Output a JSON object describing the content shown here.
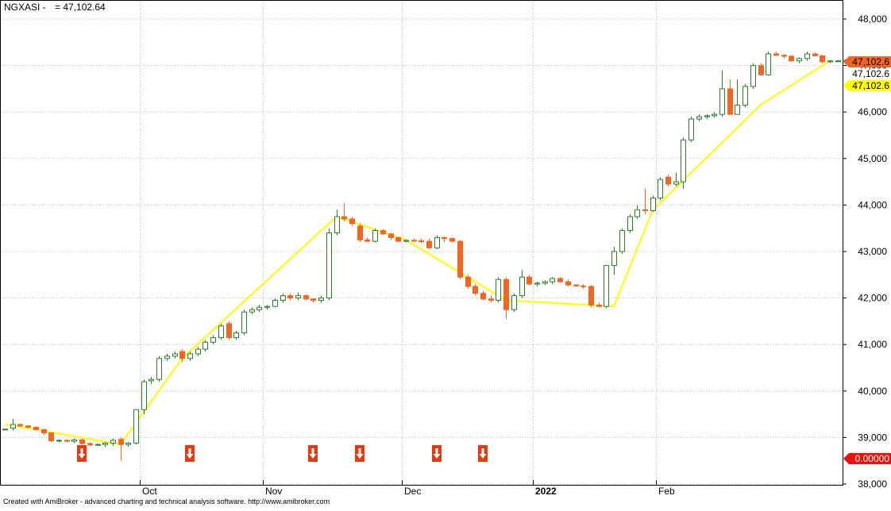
{
  "chart_data": {
    "type": "candlestick",
    "symbol": "NGXASI -",
    "last_value": "= 47,102.64",
    "y_ticks": [
      38000,
      39000,
      40000,
      41000,
      42000,
      43000,
      44000,
      45000,
      46000,
      47000,
      48000
    ],
    "ylim": [
      38000,
      48000
    ],
    "x_labels": [
      {
        "label": "Oct",
        "bar": 18
      },
      {
        "label": "Nov",
        "bar": 34
      },
      {
        "label": "Dec",
        "bar": 52
      },
      {
        "label": "2022",
        "bar": 69
      },
      {
        "label": "Feb",
        "bar": 85
      }
    ],
    "price_tags": [
      {
        "text": "47,102.6",
        "style": "orange"
      },
      {
        "text": "47,102.6",
        "style": "plain"
      },
      {
        "text": "47,102.6",
        "style": "yellow"
      },
      {
        "text": "0.00000",
        "style": "red"
      }
    ],
    "candles": [
      [
        39180,
        39180,
        39180,
        39180
      ],
      [
        39200,
        39400,
        39150,
        39280
      ],
      [
        39280,
        39300,
        39230,
        39250
      ],
      [
        39250,
        39270,
        39200,
        39220
      ],
      [
        39220,
        39240,
        39150,
        39170
      ],
      [
        39170,
        39180,
        39050,
        39100
      ],
      [
        39100,
        39100,
        38900,
        38930
      ],
      [
        38930,
        38960,
        38900,
        38940
      ],
      [
        38940,
        38960,
        38900,
        38920
      ],
      [
        38920,
        38980,
        38880,
        38950
      ],
      [
        38950,
        38970,
        38850,
        38870
      ],
      [
        38870,
        38900,
        38820,
        38840
      ],
      [
        38840,
        38870,
        38820,
        38850
      ],
      [
        38850,
        38900,
        38800,
        38880
      ],
      [
        38880,
        38980,
        38820,
        38940
      ],
      [
        38960,
        39000,
        38500,
        38850
      ],
      [
        38850,
        38900,
        38800,
        38880
      ],
      [
        38880,
        39600,
        38850,
        39600
      ],
      [
        39600,
        40250,
        39500,
        40200
      ],
      [
        40220,
        40300,
        40150,
        40250
      ],
      [
        40250,
        40750,
        40200,
        40700
      ],
      [
        40700,
        40800,
        40650,
        40750
      ],
      [
        40750,
        40850,
        40700,
        40800
      ],
      [
        40850,
        40900,
        40620,
        40700
      ],
      [
        40700,
        40850,
        40650,
        40800
      ],
      [
        40800,
        40950,
        40750,
        40900
      ],
      [
        40900,
        41100,
        40850,
        41050
      ],
      [
        41050,
        41200,
        41000,
        41150
      ],
      [
        41150,
        41450,
        41100,
        41400
      ],
      [
        41450,
        41500,
        41100,
        41150
      ],
      [
        41150,
        41300,
        41100,
        41250
      ],
      [
        41250,
        41750,
        41200,
        41700
      ],
      [
        41700,
        41800,
        41650,
        41750
      ],
      [
        41750,
        41850,
        41700,
        41800
      ],
      [
        41800,
        41850,
        41750,
        41820
      ],
      [
        41820,
        42000,
        41800,
        41950
      ],
      [
        41950,
        42100,
        41900,
        42050
      ],
      [
        42050,
        42100,
        41950,
        42000
      ],
      [
        42000,
        42120,
        41950,
        42050
      ],
      [
        42050,
        42080,
        41950,
        41980
      ],
      [
        41980,
        42000,
        41900,
        41950
      ],
      [
        41950,
        42050,
        41900,
        42000
      ],
      [
        42000,
        43500,
        41950,
        43400
      ],
      [
        43400,
        43900,
        43350,
        43750
      ],
      [
        43750,
        44050,
        43650,
        43700
      ],
      [
        43700,
        43750,
        43550,
        43600
      ],
      [
        43550,
        43600,
        43200,
        43250
      ],
      [
        43250,
        43300,
        43200,
        43220
      ],
      [
        43220,
        43500,
        43200,
        43450
      ],
      [
        43450,
        43480,
        43350,
        43380
      ],
      [
        43380,
        43400,
        43250,
        43300
      ],
      [
        43300,
        43320,
        43200,
        43220
      ],
      [
        43220,
        43260,
        43200,
        43240
      ],
      [
        43240,
        43280,
        43200,
        43230
      ],
      [
        43230,
        43280,
        43180,
        43220
      ],
      [
        43220,
        43280,
        43050,
        43080
      ],
      [
        43080,
        43350,
        43050,
        43300
      ],
      [
        43300,
        43320,
        43200,
        43280
      ],
      [
        43280,
        43300,
        43200,
        43220
      ],
      [
        43220,
        43250,
        42400,
        42450
      ],
      [
        42450,
        42500,
        42200,
        42250
      ],
      [
        42250,
        42300,
        42050,
        42100
      ],
      [
        42100,
        42150,
        41950,
        41980
      ],
      [
        41980,
        42050,
        41900,
        41950
      ],
      [
        41950,
        42450,
        41900,
        42400
      ],
      [
        42400,
        42450,
        41550,
        41750
      ],
      [
        41750,
        42100,
        41700,
        42050
      ],
      [
        42050,
        42600,
        42000,
        42450
      ],
      [
        42450,
        42500,
        42280,
        42300
      ],
      [
        42300,
        42350,
        42250,
        42320
      ],
      [
        42320,
        42380,
        42280,
        42350
      ],
      [
        42350,
        42450,
        42300,
        42420
      ],
      [
        42420,
        42450,
        42330,
        42350
      ],
      [
        42350,
        42400,
        42250,
        42280
      ],
      [
        42280,
        42300,
        42240,
        42260
      ],
      [
        42260,
        42300,
        42200,
        42250
      ],
      [
        42250,
        42280,
        41800,
        41850
      ],
      [
        41850,
        41900,
        41800,
        41820
      ],
      [
        41820,
        42700,
        41780,
        42700
      ],
      [
        42700,
        43100,
        42500,
        43000
      ],
      [
        43000,
        43500,
        42950,
        43450
      ],
      [
        43450,
        43800,
        43400,
        43750
      ],
      [
        43750,
        44000,
        43700,
        43900
      ],
      [
        43900,
        44350,
        43800,
        43880
      ],
      [
        43880,
        44200,
        43850,
        44150
      ],
      [
        44150,
        44600,
        44100,
        44550
      ],
      [
        44600,
        44650,
        44400,
        44450
      ],
      [
        44450,
        44700,
        44400,
        44500
      ],
      [
        44500,
        45450,
        44350,
        45400
      ],
      [
        45400,
        45900,
        45350,
        45850
      ],
      [
        45850,
        45950,
        45800,
        45900
      ],
      [
        45900,
        45950,
        45850,
        45920
      ],
      [
        45920,
        46000,
        45880,
        45950
      ],
      [
        45950,
        46900,
        45900,
        46500
      ],
      [
        46500,
        46700,
        45950,
        45950
      ],
      [
        45950,
        46700,
        45950,
        46150
      ],
      [
        46150,
        46600,
        46100,
        46550
      ],
      [
        46550,
        47050,
        46500,
        47000
      ],
      [
        47000,
        47050,
        46780,
        46800
      ],
      [
        46800,
        47300,
        46780,
        47250
      ],
      [
        47250,
        47300,
        47200,
        47220
      ],
      [
        47220,
        47250,
        47150,
        47200
      ],
      [
        47200,
        47220,
        47080,
        47100
      ],
      [
        47100,
        47180,
        47050,
        47150
      ],
      [
        47150,
        47300,
        47100,
        47250
      ],
      [
        47250,
        47280,
        47200,
        47210
      ],
      [
        47210,
        47230,
        47050,
        47080
      ],
      [
        47080,
        47120,
        47050,
        47100
      ],
      [
        47100,
        47120,
        47080,
        47100
      ],
      [
        47100,
        47140,
        47080,
        47102.64
      ]
    ],
    "zigzag": [
      [
        0,
        39280
      ],
      [
        4,
        39170
      ],
      [
        15,
        38850
      ],
      [
        23,
        40700
      ],
      [
        43,
        43750
      ],
      [
        52,
        43250
      ],
      [
        65,
        41950
      ],
      [
        79,
        41820
      ],
      [
        84,
        43880
      ],
      [
        98,
        46150
      ],
      [
        107,
        47102.64
      ]
    ],
    "sell_arrows": [
      10,
      24,
      40,
      46,
      56,
      62
    ]
  },
  "footer": {
    "credit": "Created with AmiBroker - advanced charting and technical analysis software. http://www.amibroker.com"
  },
  "colors": {
    "up": "#2e7d2e",
    "down": "#f26522",
    "zigzag": "#ffff00",
    "arrow": "#e53910",
    "grid": "#bdbdbd"
  }
}
